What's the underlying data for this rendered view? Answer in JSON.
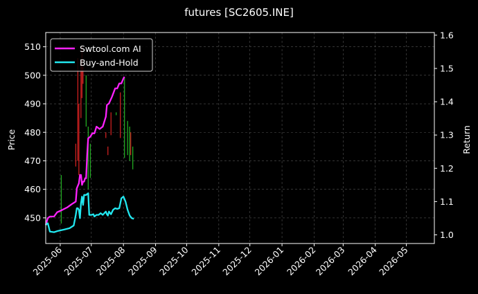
{
  "chart_data": {
    "type": "line",
    "title": "futures [SC2605.INE]",
    "xlabel": "",
    "ylabel": "Price",
    "y2label": "Return",
    "x_ticks": [
      "2025-06",
      "2025-07",
      "2025-08",
      "2025-09",
      "2025-10",
      "2025-11",
      "2025-12",
      "2026-01",
      "2026-02",
      "2026-03",
      "2026-04",
      "2026-05"
    ],
    "x_range": [
      "2025-05-18",
      "2026-05-28"
    ],
    "ylim": [
      441,
      515
    ],
    "y_ticks": [
      450,
      460,
      470,
      480,
      490,
      500,
      510
    ],
    "y2lim": [
      0.974,
      1.608
    ],
    "y2_ticks": [
      "1.0",
      "1.1",
      "1.2",
      "1.3",
      "1.4",
      "1.5",
      "1.6"
    ],
    "grid": true,
    "legend_position": "top-left",
    "colors": {
      "background": "#000000",
      "text": "#ffffff",
      "grid": "#555555",
      "up": "#22aa22",
      "down": "#cc2020"
    },
    "series": [
      {
        "name": "Swtool.com AI",
        "axis": "right",
        "color": "#ff22ff",
        "points": [
          [
            "2025-05-18",
            1.03
          ],
          [
            "2025-05-20",
            1.05
          ],
          [
            "2025-05-22",
            1.055
          ],
          [
            "2025-05-26",
            1.055
          ],
          [
            "2025-05-29",
            1.068
          ],
          [
            "2025-06-03",
            1.075
          ],
          [
            "2025-06-08",
            1.083
          ],
          [
            "2025-06-12",
            1.092
          ],
          [
            "2025-06-16",
            1.1
          ],
          [
            "2025-06-17",
            1.14
          ],
          [
            "2025-06-19",
            1.155
          ],
          [
            "2025-06-20",
            1.18
          ],
          [
            "2025-06-21",
            1.18
          ],
          [
            "2025-06-22",
            1.15
          ],
          [
            "2025-06-23",
            1.16
          ],
          [
            "2025-06-24",
            1.16
          ],
          [
            "2025-06-25",
            1.17
          ],
          [
            "2025-06-26",
            1.17
          ],
          [
            "2025-06-27",
            1.24
          ],
          [
            "2025-06-28",
            1.29
          ],
          [
            "2025-06-30",
            1.295
          ],
          [
            "2025-07-02",
            1.305
          ],
          [
            "2025-07-04",
            1.305
          ],
          [
            "2025-07-06",
            1.325
          ],
          [
            "2025-07-09",
            1.318
          ],
          [
            "2025-07-12",
            1.325
          ],
          [
            "2025-07-15",
            1.355
          ],
          [
            "2025-07-16",
            1.39
          ],
          [
            "2025-07-18",
            1.395
          ],
          [
            "2025-07-21",
            1.415
          ],
          [
            "2025-07-24",
            1.44
          ],
          [
            "2025-07-26",
            1.44
          ],
          [
            "2025-07-28",
            1.455
          ],
          [
            "2025-07-30",
            1.455
          ],
          [
            "2025-08-01",
            1.47
          ],
          [
            "2025-08-02",
            1.475
          ]
        ]
      },
      {
        "name": "Buy-and-Hold",
        "axis": "right",
        "color": "#22e8f0",
        "points": [
          [
            "2025-05-18",
            1.03
          ],
          [
            "2025-05-20",
            1.035
          ],
          [
            "2025-05-22",
            1.01
          ],
          [
            "2025-05-26",
            1.008
          ],
          [
            "2025-05-30",
            1.012
          ],
          [
            "2025-06-05",
            1.016
          ],
          [
            "2025-06-10",
            1.02
          ],
          [
            "2025-06-14",
            1.028
          ],
          [
            "2025-06-16",
            1.06
          ],
          [
            "2025-06-17",
            1.08
          ],
          [
            "2025-06-18",
            1.08
          ],
          [
            "2025-06-19",
            1.075
          ],
          [
            "2025-06-20",
            1.05
          ],
          [
            "2025-06-21",
            1.095
          ],
          [
            "2025-06-22",
            1.115
          ],
          [
            "2025-06-23",
            1.09
          ],
          [
            "2025-06-24",
            1.12
          ],
          [
            "2025-06-26",
            1.12
          ],
          [
            "2025-06-28",
            1.125
          ],
          [
            "2025-06-29",
            1.06
          ],
          [
            "2025-06-30",
            1.06
          ],
          [
            "2025-07-01",
            1.06
          ],
          [
            "2025-07-03",
            1.062
          ],
          [
            "2025-07-04",
            1.055
          ],
          [
            "2025-07-06",
            1.06
          ],
          [
            "2025-07-08",
            1.06
          ],
          [
            "2025-07-10",
            1.065
          ],
          [
            "2025-07-12",
            1.06
          ],
          [
            "2025-07-15",
            1.07
          ],
          [
            "2025-07-16",
            1.062
          ],
          [
            "2025-07-17",
            1.058
          ],
          [
            "2025-07-18",
            1.07
          ],
          [
            "2025-07-20",
            1.062
          ],
          [
            "2025-07-22",
            1.075
          ],
          [
            "2025-07-24",
            1.08
          ],
          [
            "2025-07-26",
            1.078
          ],
          [
            "2025-07-28",
            1.08
          ],
          [
            "2025-07-30",
            1.11
          ],
          [
            "2025-08-01",
            1.115
          ],
          [
            "2025-08-03",
            1.1
          ],
          [
            "2025-08-05",
            1.075
          ],
          [
            "2025-08-07",
            1.058
          ],
          [
            "2025-08-09",
            1.05
          ],
          [
            "2025-08-11",
            1.048
          ]
        ]
      }
    ],
    "price_bars": [
      [
        "2025-06-02",
        448,
        465,
        "up"
      ],
      [
        "2025-06-16",
        468,
        476,
        "down"
      ],
      [
        "2025-06-18",
        470,
        506,
        "down"
      ],
      [
        "2025-06-19",
        465,
        490,
        "down"
      ],
      [
        "2025-06-21",
        485,
        505,
        "down"
      ],
      [
        "2025-06-22",
        492,
        510,
        "down"
      ],
      [
        "2025-06-23",
        497,
        503,
        "down"
      ],
      [
        "2025-06-26",
        482,
        500,
        "up"
      ],
      [
        "2025-06-28",
        460,
        482,
        "up"
      ],
      [
        "2025-06-30",
        464,
        476,
        "up"
      ],
      [
        "2025-07-15",
        478,
        480,
        "down"
      ],
      [
        "2025-07-17",
        472,
        475,
        "down"
      ],
      [
        "2025-07-20",
        479,
        487,
        "down"
      ],
      [
        "2025-07-25",
        486,
        487,
        "up"
      ],
      [
        "2025-07-29",
        478,
        494,
        "down"
      ],
      [
        "2025-08-02",
        471,
        499,
        "up"
      ],
      [
        "2025-08-05",
        472,
        484,
        "up"
      ],
      [
        "2025-08-07",
        470,
        482,
        "up"
      ],
      [
        "2025-08-08",
        472,
        480,
        "down"
      ],
      [
        "2025-08-10",
        467,
        475,
        "up"
      ]
    ]
  }
}
